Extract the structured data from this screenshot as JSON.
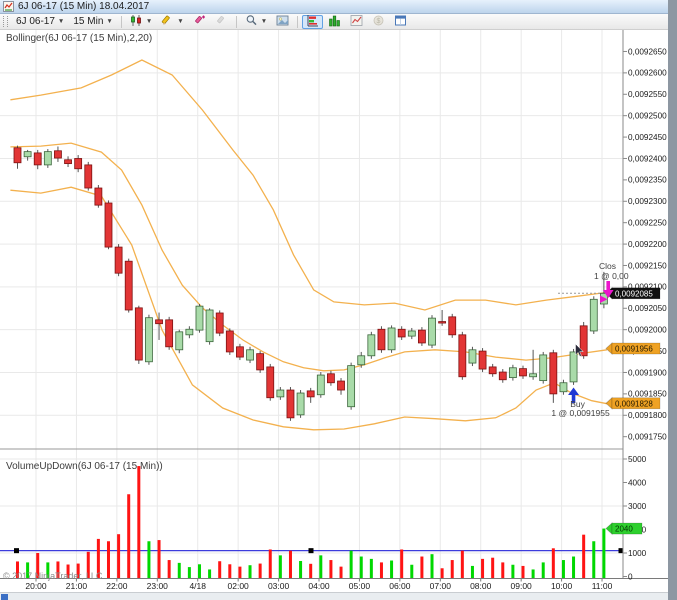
{
  "window": {
    "title": "6J 06-17 (15 Min)  18.04.2017"
  },
  "toolbar": {
    "instrument": "6J 06-17",
    "interval": "15 Min",
    "dropdown_glyph": "▼"
  },
  "chart": {
    "indicator_label": "Bollinger(6J 06-17 (15 Min),2,20)",
    "volume_label": "VolumeUpDown(6J 06-17 (15 Min))",
    "copyright": "© 2017 NinjaTrader, LLC"
  },
  "chart_data": {
    "type": "candlestick",
    "title": "6J 06-17 (15 Min) 18.04.2017 with Bollinger(2,20) and VolumeUpDown",
    "time_labels": [
      "20:00",
      "21:00",
      "22:00",
      "23:00",
      "4/18",
      "02:00",
      "03:00",
      "04:00",
      "05:00",
      "06:00",
      "07:00",
      "08:00",
      "09:00",
      "10:00",
      "11:00"
    ],
    "price_ticks": [
      [
        0.009265,
        "0,0092650"
      ],
      [
        0.00926,
        "0,0092600"
      ],
      [
        0.009255,
        "0,0092550"
      ],
      [
        0.00925,
        "0,0092500"
      ],
      [
        0.009245,
        "0,0092450"
      ],
      [
        0.00924,
        "0,0092400"
      ],
      [
        0.009235,
        "0,0092350"
      ],
      [
        0.00923,
        "0,0092300"
      ],
      [
        0.009225,
        "0,0092250"
      ],
      [
        0.00922,
        "0,0092200"
      ],
      [
        0.009215,
        "0,0092150"
      ],
      [
        0.00921,
        "0,0092100"
      ],
      [
        0.009205,
        "0,0092050"
      ],
      [
        0.0092,
        "0,0092000"
      ],
      [
        0.009195,
        "0,0091950"
      ],
      [
        0.00919,
        "0,0091900"
      ],
      [
        0.009185,
        "0,0091850"
      ],
      [
        0.00918,
        "0,0091800"
      ],
      [
        0.009175,
        "0,0091750"
      ]
    ],
    "grid_prices": [
      0.00926,
      0.00925,
      0.00924,
      0.00923,
      0.00922,
      0.00921,
      0.0092,
      0.00919,
      0.00918
    ],
    "volume_ticks": [
      [
        5000,
        "5000"
      ],
      [
        4000,
        "4000"
      ],
      [
        3000,
        "3000"
      ],
      [
        2000,
        "2000"
      ],
      [
        1000,
        "1000"
      ],
      [
        0,
        "0"
      ]
    ],
    "grid_volumes": [
      5000,
      3000,
      1000
    ],
    "candles": [
      [
        0.0092425,
        0.009243,
        0.0092376,
        0.009239
      ],
      [
        0.0092404,
        0.009242,
        0.0092395,
        0.0092416
      ],
      [
        0.0092413,
        0.009242,
        0.0092375,
        0.0092385
      ],
      [
        0.0092385,
        0.0092422,
        0.0092378,
        0.0092416
      ],
      [
        0.0092418,
        0.0092428,
        0.0092392,
        0.0092401
      ],
      [
        0.0092397,
        0.0092405,
        0.009238,
        0.0092388
      ],
      [
        0.00924,
        0.0092408,
        0.0092368,
        0.0092376
      ],
      [
        0.0092385,
        0.0092392,
        0.0092325,
        0.0092331
      ],
      [
        0.0092331,
        0.0092338,
        0.0092285,
        0.0092291
      ],
      [
        0.0092296,
        0.0092302,
        0.0092188,
        0.0092193
      ],
      [
        0.0092193,
        0.00922,
        0.0092125,
        0.0092132
      ],
      [
        0.009216,
        0.0092166,
        0.009204,
        0.0092046
      ],
      [
        0.0092051,
        0.0092056,
        0.009192,
        0.0091929
      ],
      [
        0.0091925,
        0.0092035,
        0.0091918,
        0.0092028
      ],
      [
        0.0092023,
        0.009204,
        0.0091976,
        0.0092014
      ],
      [
        0.0092023,
        0.009203,
        0.0091953,
        0.009196
      ],
      [
        0.0091953,
        0.0092,
        0.0091945,
        0.0091995
      ],
      [
        0.0091988,
        0.0092008,
        0.009198,
        0.0092001
      ],
      [
        0.0091999,
        0.009206,
        0.0091993,
        0.0092055
      ],
      [
        0.0091972,
        0.009205,
        0.0091965,
        0.0092046
      ],
      [
        0.0092039,
        0.0092045,
        0.0091985,
        0.0091992
      ],
      [
        0.0091997,
        0.0092003,
        0.0091941,
        0.0091948
      ],
      [
        0.009196,
        0.0091967,
        0.0091929,
        0.0091936
      ],
      [
        0.0091929,
        0.009196,
        0.0091922,
        0.0091953
      ],
      [
        0.0091944,
        0.009195,
        0.0091899,
        0.0091906
      ],
      [
        0.0091913,
        0.009192,
        0.0091834,
        0.0091841
      ],
      [
        0.0091843,
        0.0091866,
        0.0091836,
        0.0091859
      ],
      [
        0.0091859,
        0.0091866,
        0.0091787,
        0.0091794
      ],
      [
        0.0091801,
        0.0091859,
        0.0091794,
        0.0091852
      ],
      [
        0.0091857,
        0.0091864,
        0.0091829,
        0.0091843
      ],
      [
        0.0091848,
        0.0091901,
        0.0091841,
        0.0091894
      ],
      [
        0.0091897,
        0.0091904,
        0.0091869,
        0.0091876
      ],
      [
        0.009188,
        0.0091887,
        0.0091848,
        0.0091859
      ],
      [
        0.009182,
        0.0091923,
        0.0091813,
        0.0091916
      ],
      [
        0.0091918,
        0.0091948,
        0.0091911,
        0.0091939
      ],
      [
        0.0091939,
        0.0091995,
        0.0091932,
        0.0091988
      ],
      [
        0.0092001,
        0.0092008,
        0.0091946,
        0.0091953
      ],
      [
        0.0091953,
        0.009201,
        0.0091946,
        0.0092004
      ],
      [
        0.0092001,
        0.0092008,
        0.0091976,
        0.0091983
      ],
      [
        0.0091985,
        0.0092004,
        0.0091978,
        0.0091997
      ],
      [
        0.0091999,
        0.0092006,
        0.0091962,
        0.0091969
      ],
      [
        0.0091964,
        0.0092034,
        0.0091957,
        0.0092027
      ],
      [
        0.0092019,
        0.0092046,
        0.0092009,
        0.0092016
      ],
      [
        0.009203,
        0.0092037,
        0.0091981,
        0.0091988
      ],
      [
        0.0091988,
        0.0091995,
        0.0091883,
        0.009189
      ],
      [
        0.0091922,
        0.009196,
        0.0091915,
        0.0091953
      ],
      [
        0.009195,
        0.0091957,
        0.0091901,
        0.0091908
      ],
      [
        0.0091913,
        0.009192,
        0.009189,
        0.0091897
      ],
      [
        0.0091901,
        0.0091908,
        0.0091876,
        0.0091883
      ],
      [
        0.0091888,
        0.0091918,
        0.0091881,
        0.0091911
      ],
      [
        0.0091909,
        0.0091916,
        0.0091885,
        0.0091892
      ],
      [
        0.009189,
        0.0091953,
        0.0091883,
        0.0091897
      ],
      [
        0.0091881,
        0.0091948,
        0.0091874,
        0.0091941
      ],
      [
        0.0091946,
        0.0091953,
        0.0091829,
        0.009185
      ],
      [
        0.0091855,
        0.0091883,
        0.0091848,
        0.0091876
      ],
      [
        0.0091878,
        0.0091955,
        0.0091871,
        0.0091948
      ],
      [
        0.0092009,
        0.0092018,
        0.0091932,
        0.0091939
      ],
      [
        0.0091997,
        0.0092078,
        0.009199,
        0.0092071
      ],
      [
        0.009206,
        0.0092135,
        0.009205,
        0.0092085
      ]
    ],
    "volumes": [
      640,
      600,
      1000,
      600,
      640,
      510,
      550,
      1050,
      1600,
      1500,
      1800,
      3500,
      4700,
      1500,
      1550,
      700,
      580,
      400,
      520,
      300,
      650,
      520,
      420,
      480,
      550,
      1150,
      900,
      1100,
      660,
      540,
      900,
      700,
      420,
      1100,
      850,
      750,
      600,
      680,
      1150,
      500,
      850,
      950,
      350,
      700,
      1100,
      450,
      750,
      800,
      600,
      500,
      450,
      300,
      600,
      1200,
      700,
      850,
      1780,
      1500,
      2040
    ],
    "bollinger_upper": [
      [
        -0.7,
        0.0092537
      ],
      [
        2.3,
        0.0092548
      ],
      [
        6.3,
        0.0092565
      ],
      [
        9.3,
        0.0092595
      ],
      [
        12.3,
        0.009263
      ],
      [
        15.3,
        0.0092595
      ],
      [
        18.3,
        0.0092513
      ],
      [
        21.3,
        0.009242
      ],
      [
        23.3,
        0.0092361
      ],
      [
        25.3,
        0.009228
      ],
      [
        27.3,
        0.0092175
      ],
      [
        29.3,
        0.0092093
      ],
      [
        31.3,
        0.0092065
      ],
      [
        34.3,
        0.0092058
      ],
      [
        37.3,
        0.0092062
      ],
      [
        40.3,
        0.0092046
      ],
      [
        43.3,
        0.0092069
      ],
      [
        46.3,
        0.0092069
      ],
      [
        49.3,
        0.0092058
      ],
      [
        52.3,
        0.0092069
      ],
      [
        55.3,
        0.0092078
      ],
      [
        58.3,
        0.0092087
      ]
    ],
    "bollinger_middle": [
      [
        -0.7,
        0.0092427
      ],
      [
        2.3,
        0.0092429
      ],
      [
        5.3,
        0.0092436
      ],
      [
        8.3,
        0.0092415
      ],
      [
        10.3,
        0.0092373
      ],
      [
        12.3,
        0.0092291
      ],
      [
        14.3,
        0.0092186
      ],
      [
        16.3,
        0.0092104
      ],
      [
        18.3,
        0.0092051
      ],
      [
        20.3,
        0.0092011
      ],
      [
        22.3,
        0.0091976
      ],
      [
        24.3,
        0.0091948
      ],
      [
        26.3,
        0.0091925
      ],
      [
        28.3,
        0.0091911
      ],
      [
        30.3,
        0.0091904
      ],
      [
        32.3,
        0.0091906
      ],
      [
        34.3,
        0.0091918
      ],
      [
        36.3,
        0.0091934
      ],
      [
        38.3,
        0.0091948
      ],
      [
        41.3,
        0.0091953
      ],
      [
        44.3,
        0.0091948
      ],
      [
        47.3,
        0.0091936
      ],
      [
        50.3,
        0.0091929
      ],
      [
        52.8,
        0.0091934
      ],
      [
        55.3,
        0.0091943
      ],
      [
        58.3,
        0.0091953
      ]
    ],
    "bollinger_lower": [
      [
        -0.7,
        0.0092326
      ],
      [
        2.3,
        0.0092319
      ],
      [
        5.3,
        0.0092333
      ],
      [
        8.3,
        0.0092312
      ],
      [
        11.3,
        0.0092198
      ],
      [
        14.3,
        0.0091999
      ],
      [
        17.3,
        0.0091871
      ],
      [
        20.3,
        0.0091817
      ],
      [
        23.3,
        0.0091789
      ],
      [
        26.3,
        0.0091773
      ],
      [
        29.3,
        0.0091766
      ],
      [
        32.3,
        0.0091768
      ],
      [
        35.3,
        0.009178
      ],
      [
        38.3,
        0.0091796
      ],
      [
        41.3,
        0.0091792
      ],
      [
        44.3,
        0.0091787
      ],
      [
        47.3,
        0.0091794
      ],
      [
        49.3,
        0.0091817
      ],
      [
        51.3,
        0.0091859
      ],
      [
        53.1,
        0.0091876
      ],
      [
        54.8,
        0.0091852
      ],
      [
        56.8,
        0.0091834
      ],
      [
        58.3,
        0.0091827
      ]
    ],
    "markers": {
      "last_price": {
        "value": 0.0092085,
        "label": "0,0092085",
        "bg": "#111111",
        "fg": "#ffffff"
      },
      "band_middle": {
        "value": 0.0091956,
        "label": "0,0091956",
        "bg": "#efa224",
        "fg": "#241a00"
      },
      "band_lower": {
        "value": 0.0091828,
        "label": "0,0091828",
        "bg": "#efa224",
        "fg": "#241a00"
      },
      "volume": {
        "value": 2040,
        "label": "2040",
        "bg": "#2ed02e",
        "fg": "#003300"
      }
    },
    "levels": {
      "last_price": 0.0092085,
      "volume_line": 1100
    },
    "annotations": {
      "buy": {
        "bar": 55,
        "label": "Buy",
        "detail": "1 @ 0,0091955",
        "arrow_color": "#2038d4"
      },
      "close": {
        "label": "Clos",
        "detail": "1 @ 0,00",
        "arrow_color": "#ec14cc"
      }
    },
    "colors": {
      "up_fill": "#a9dba9",
      "up_stroke": "#3c663c",
      "down_fill": "#e23535",
      "down_stroke": "#7c1212",
      "wick": "#555555",
      "band": "#f3b14e",
      "vol_up": "#00d800",
      "vol_down": "#ff1414",
      "hline": "#3c3cdc",
      "grid": "#e9e9e9",
      "axis": "#8a8a8a",
      "text": "#1a1a1a"
    },
    "legend_position": "top-left",
    "grid": true
  }
}
